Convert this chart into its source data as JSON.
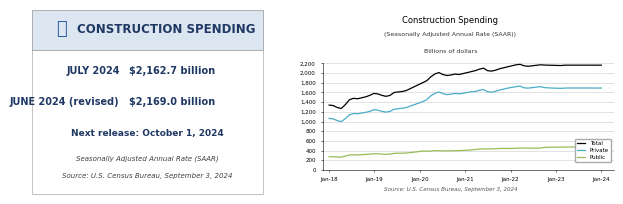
{
  "left_bg_color": "#dce6f1",
  "title": "CONSTRUCTION SPENDING",
  "title_fontsize": 8.5,
  "july_label": "JULY 2024",
  "july_value": "$2,162.7 billion",
  "june_label": "JUNE 2024 (revised)",
  "june_value": "$2,169.0 billion",
  "next_release": "Next release: October 1, 2024",
  "footnote1": "Seasonally Adjusted Annual Rate (SAAR)",
  "footnote2": "Source: U.S. Census Bureau, September 3, 2024",
  "chart_title": "Construction Spending",
  "chart_subtitle1": "(Seasonally Adjusted Annual Rate (SAAR))",
  "chart_subtitle2": "Billions of dollars",
  "chart_source": "Source: U.S. Census Bureau, September 3, 2024",
  "xlabels": [
    "Jan-18",
    "Jan-19",
    "Jan-20",
    "Jan-21",
    "Jan-22",
    "Jan-23",
    "Jan-24"
  ],
  "ylim": [
    0,
    2200
  ],
  "yticks": [
    0,
    200,
    400,
    600,
    800,
    1000,
    1200,
    1400,
    1600,
    1800,
    2000,
    2200
  ],
  "total_color": "#000000",
  "private_color": "#4bacc6",
  "public_color": "#9bbb59",
  "total_data": [
    1340,
    1330,
    1290,
    1270,
    1350,
    1450,
    1480,
    1470,
    1490,
    1510,
    1540,
    1580,
    1570,
    1540,
    1520,
    1540,
    1600,
    1610,
    1620,
    1640,
    1680,
    1720,
    1760,
    1800,
    1840,
    1920,
    1980,
    2010,
    1970,
    1950,
    1960,
    1980,
    1970,
    1990,
    2010,
    2030,
    2050,
    2080,
    2100,
    2050,
    2040,
    2060,
    2090,
    2110,
    2130,
    2150,
    2170,
    2180,
    2150,
    2140,
    2150,
    2160,
    2170,
    2165,
    2162,
    2160,
    2158,
    2155,
    2162,
    2163,
    2163,
    2163,
    2163,
    2163,
    2163,
    2163,
    2162,
    2163
  ],
  "private_data": [
    1065,
    1055,
    1020,
    1000,
    1060,
    1140,
    1165,
    1160,
    1175,
    1190,
    1210,
    1245,
    1235,
    1210,
    1195,
    1210,
    1255,
    1265,
    1275,
    1290,
    1320,
    1350,
    1380,
    1410,
    1450,
    1530,
    1580,
    1610,
    1575,
    1555,
    1565,
    1580,
    1570,
    1585,
    1600,
    1615,
    1620,
    1645,
    1660,
    1615,
    1605,
    1625,
    1650,
    1670,
    1690,
    1705,
    1720,
    1730,
    1695,
    1690,
    1700,
    1710,
    1720,
    1700,
    1695,
    1690,
    1688,
    1685,
    1690,
    1692,
    1692,
    1692,
    1692,
    1692,
    1692,
    1692,
    1690,
    1692
  ],
  "public_data": [
    275,
    275,
    270,
    268,
    290,
    310,
    315,
    312,
    318,
    322,
    330,
    335,
    335,
    330,
    325,
    330,
    345,
    348,
    348,
    352,
    360,
    370,
    380,
    392,
    390,
    392,
    400,
    400,
    396,
    395,
    397,
    400,
    402,
    405,
    410,
    415,
    425,
    432,
    438,
    435,
    437,
    440,
    445,
    448,
    445,
    448,
    450,
    453,
    455,
    452,
    452,
    453,
    455,
    468,
    470,
    472,
    473,
    474,
    475,
    475,
    476,
    476,
    476,
    476,
    476,
    476,
    475,
    476
  ]
}
